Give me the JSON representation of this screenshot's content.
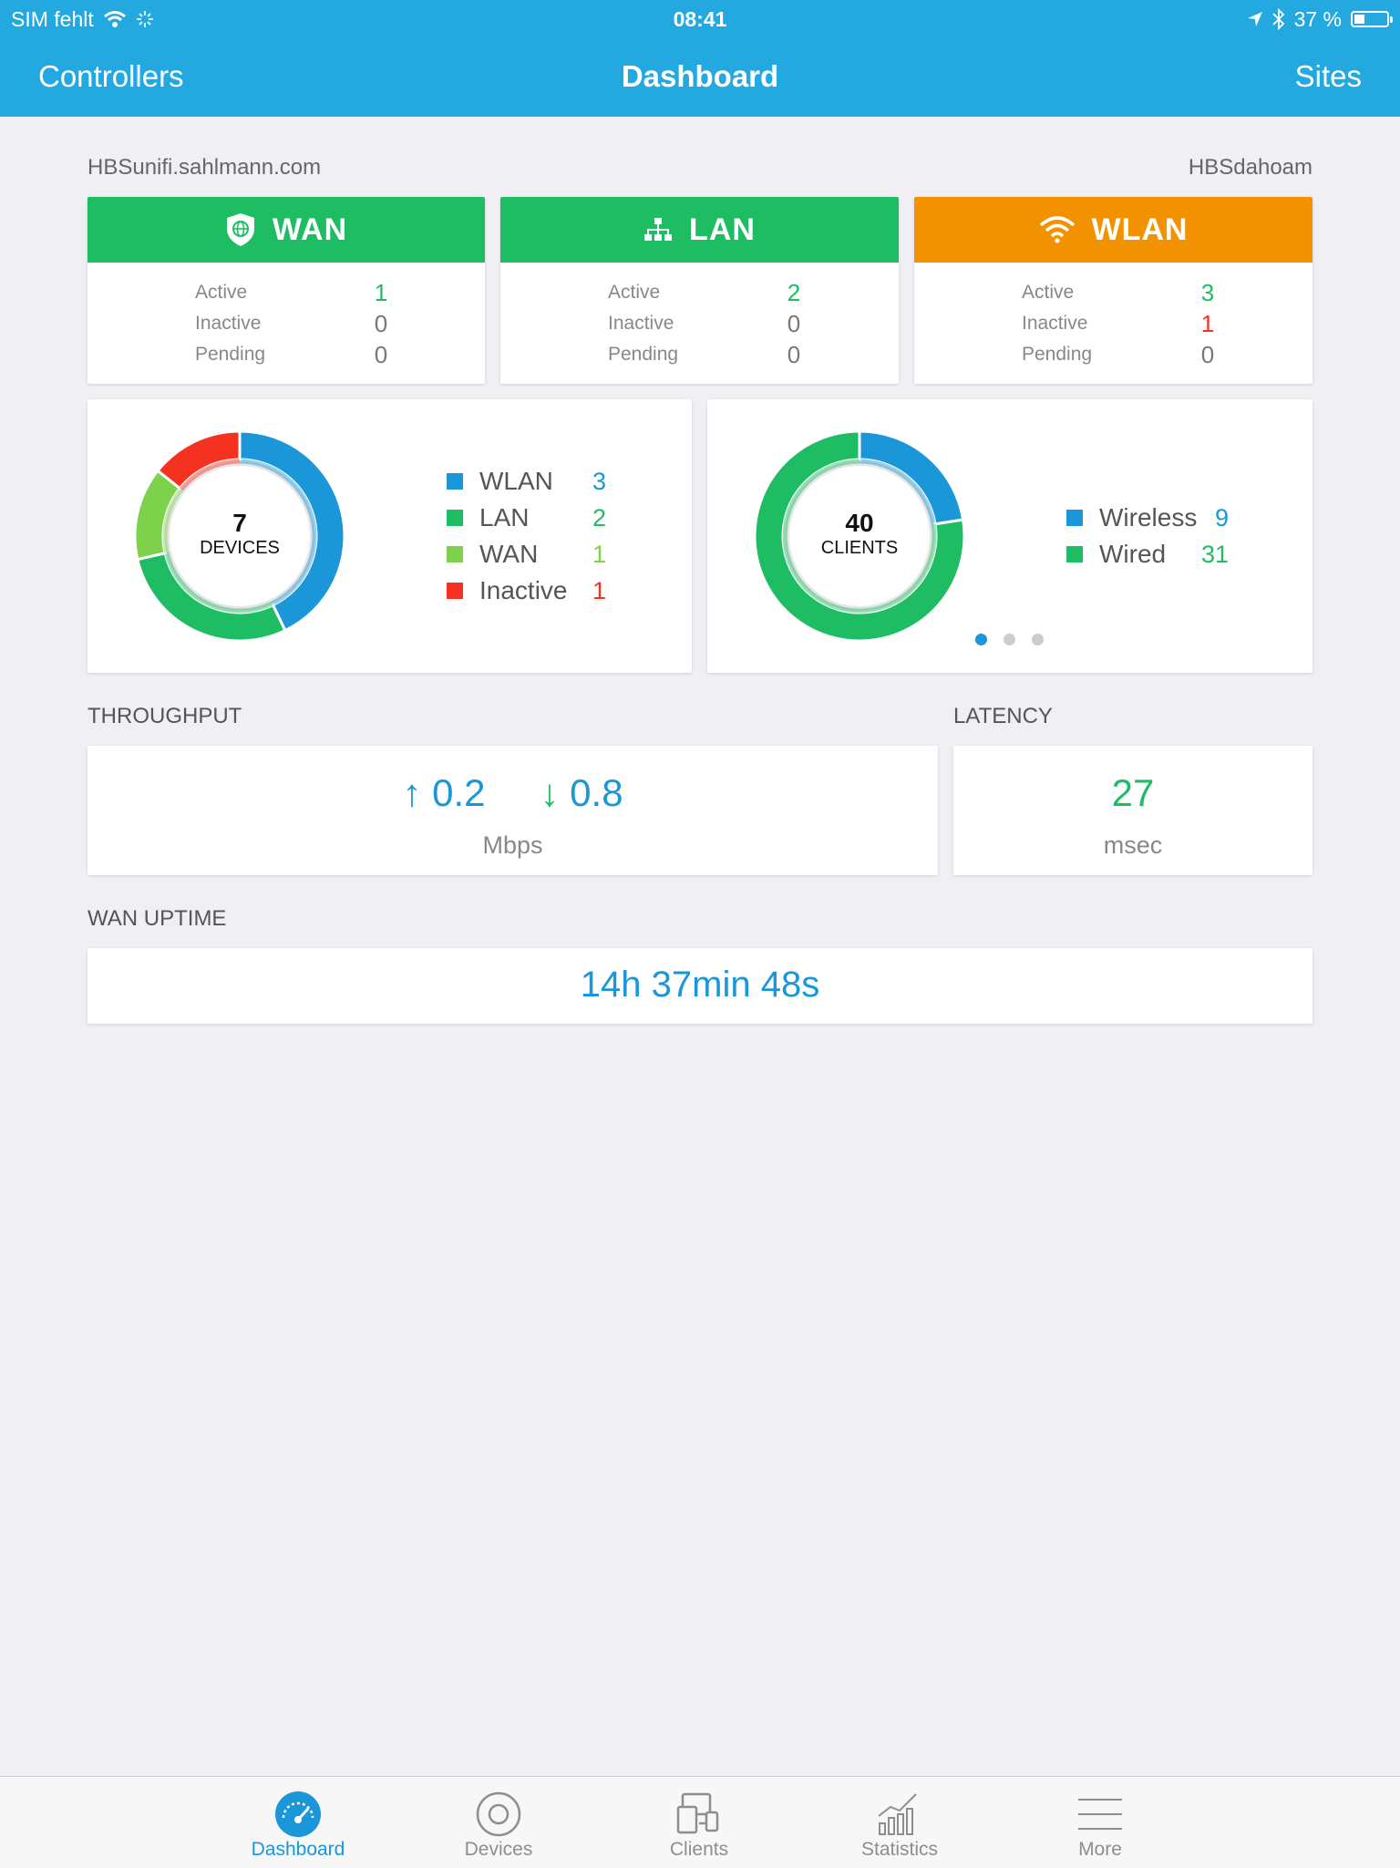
{
  "status_bar": {
    "carrier": "SIM fehlt",
    "time": "08:41",
    "battery": "37 %"
  },
  "nav": {
    "left": "Controllers",
    "title": "Dashboard",
    "right": "Sites"
  },
  "controller": "HBSunifi.sahlmann.com",
  "site": "HBSdahoam",
  "colors": {
    "accent": "#23a8e0",
    "green": "#1fbd63",
    "orange": "#f39200",
    "blue": "#1a96d9",
    "light_green": "#7ed14a",
    "red": "#f53221"
  },
  "stat_cards": [
    {
      "title": "WAN",
      "icon": "shield-globe-icon",
      "rows": [
        {
          "label": "Active",
          "value": "1"
        },
        {
          "label": "Inactive",
          "value": "0"
        },
        {
          "label": "Pending",
          "value": "0"
        }
      ]
    },
    {
      "title": "LAN",
      "icon": "network-icon",
      "rows": [
        {
          "label": "Active",
          "value": "2"
        },
        {
          "label": "Inactive",
          "value": "0"
        },
        {
          "label": "Pending",
          "value": "0"
        }
      ]
    },
    {
      "title": "WLAN",
      "icon": "wifi-icon",
      "rows": [
        {
          "label": "Active",
          "value": "3"
        },
        {
          "label": "Inactive",
          "value": "1"
        },
        {
          "label": "Pending",
          "value": "0"
        }
      ]
    }
  ],
  "devices": {
    "count": "7",
    "label": "DEVICES",
    "legend": [
      {
        "name": "WLAN",
        "value": 3,
        "color": "#1a96d9"
      },
      {
        "name": "LAN",
        "value": 2,
        "color": "#1fbd63"
      },
      {
        "name": "WAN",
        "value": 1,
        "color": "#7ed14a"
      },
      {
        "name": "Inactive",
        "value": 1,
        "color": "#f53221"
      }
    ]
  },
  "clients": {
    "count": "40",
    "label": "CLIENTS",
    "legend": [
      {
        "name": "Wireless",
        "value": 9,
        "color": "#1a96d9"
      },
      {
        "name": "Wired",
        "value": 31,
        "color": "#1fbd63"
      }
    ]
  },
  "throughput": {
    "title": "THROUGHPUT",
    "up_arrow": "↑",
    "up": "0.2",
    "down_arrow": "↓",
    "down": "0.8",
    "unit": "Mbps"
  },
  "latency": {
    "title": "LATENCY",
    "value": "27",
    "unit": "msec"
  },
  "uptime": {
    "title": "WAN UPTIME",
    "value": "14h 37min 48s"
  },
  "tabs": [
    {
      "label": "Dashboard",
      "icon": "speedometer-icon",
      "active": true
    },
    {
      "label": "Devices",
      "icon": "device-circle-icon",
      "active": false
    },
    {
      "label": "Clients",
      "icon": "clients-devices-icon",
      "active": false
    },
    {
      "label": "Statistics",
      "icon": "statistics-chart-icon",
      "active": false
    },
    {
      "label": "More",
      "icon": "menu-lines-icon",
      "active": false
    }
  ]
}
